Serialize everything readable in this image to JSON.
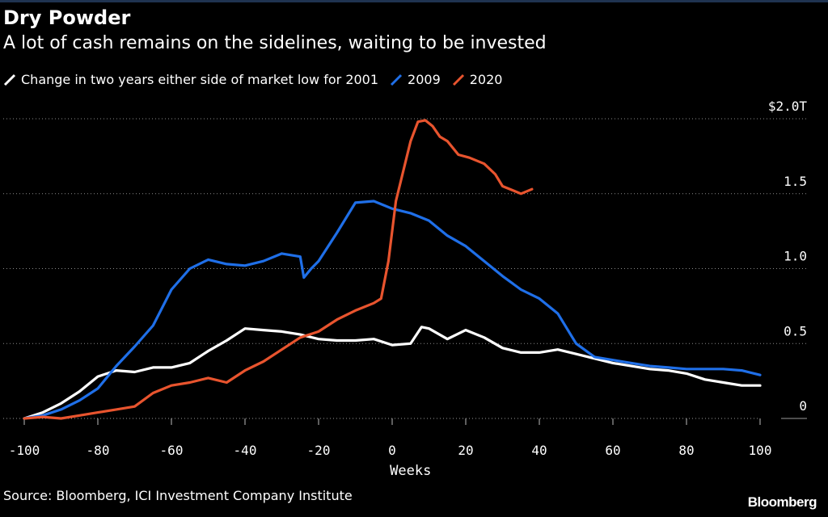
{
  "title": "Dry Powder",
  "subtitle": "A lot of cash remains on the sidelines, waiting to be invested",
  "source": "Source: Bloomberg, ICI Investment Company Institute",
  "brand": "Bloomberg",
  "chart_data": {
    "type": "line",
    "xlabel": "Weeks",
    "ylabel": "",
    "xlim": [
      -100,
      100
    ],
    "ylim": [
      0,
      2.0
    ],
    "x_ticks": [
      -100,
      -80,
      -60,
      -40,
      -20,
      0,
      20,
      40,
      60,
      80,
      100
    ],
    "y_ticks": [
      {
        "value": 0,
        "label": "0"
      },
      {
        "value": 0.5,
        "label": "0.5"
      },
      {
        "value": 1.0,
        "label": "1.0"
      },
      {
        "value": 1.5,
        "label": "1.5"
      },
      {
        "value": 2.0,
        "label": "$2.0T"
      }
    ],
    "grid": "horizontal dotted",
    "legend_position": "top-left",
    "series": [
      {
        "name": "Change in two years either side of market low for 2001",
        "color": "#ffffff",
        "x": [
          -100,
          -95,
          -90,
          -85,
          -80,
          -75,
          -70,
          -65,
          -60,
          -55,
          -50,
          -45,
          -40,
          -35,
          -30,
          -25,
          -20,
          -15,
          -10,
          -5,
          0,
          5,
          8,
          10,
          15,
          20,
          25,
          30,
          35,
          40,
          45,
          50,
          55,
          60,
          65,
          70,
          75,
          80,
          85,
          90,
          95,
          100
        ],
        "y": [
          0.0,
          0.04,
          0.1,
          0.18,
          0.28,
          0.32,
          0.31,
          0.34,
          0.34,
          0.37,
          0.45,
          0.52,
          0.6,
          0.59,
          0.58,
          0.56,
          0.53,
          0.52,
          0.52,
          0.53,
          0.49,
          0.5,
          0.61,
          0.6,
          0.53,
          0.59,
          0.54,
          0.47,
          0.44,
          0.44,
          0.46,
          0.43,
          0.4,
          0.37,
          0.35,
          0.33,
          0.32,
          0.3,
          0.26,
          0.24,
          0.22,
          0.22
        ]
      },
      {
        "name": "2009",
        "color": "#1f6fe8",
        "x": [
          -100,
          -95,
          -90,
          -85,
          -80,
          -75,
          -70,
          -65,
          -60,
          -55,
          -50,
          -45,
          -40,
          -35,
          -30,
          -25,
          -24,
          -22,
          -20,
          -15,
          -10,
          -5,
          0,
          5,
          10,
          15,
          20,
          25,
          30,
          35,
          40,
          45,
          50,
          55,
          60,
          65,
          70,
          75,
          80,
          85,
          90,
          95,
          100
        ],
        "y": [
          0.0,
          0.02,
          0.06,
          0.12,
          0.2,
          0.35,
          0.48,
          0.62,
          0.86,
          1.0,
          1.06,
          1.03,
          1.02,
          1.05,
          1.1,
          1.08,
          0.94,
          1.0,
          1.05,
          1.24,
          1.44,
          1.45,
          1.4,
          1.37,
          1.32,
          1.22,
          1.15,
          1.05,
          0.95,
          0.86,
          0.8,
          0.7,
          0.5,
          0.41,
          0.39,
          0.37,
          0.35,
          0.34,
          0.33,
          0.33,
          0.33,
          0.32,
          0.29
        ]
      },
      {
        "name": "2020",
        "color": "#e8542e",
        "x": [
          -100,
          -95,
          -90,
          -85,
          -80,
          -75,
          -70,
          -65,
          -60,
          -55,
          -50,
          -45,
          -40,
          -35,
          -30,
          -25,
          -20,
          -15,
          -10,
          -5,
          -3,
          -1,
          1,
          3,
          5,
          7,
          9,
          11,
          13,
          15,
          18,
          21,
          25,
          28,
          30,
          33,
          35,
          38
        ],
        "y": [
          0.0,
          0.01,
          0.0,
          0.02,
          0.04,
          0.06,
          0.08,
          0.17,
          0.22,
          0.24,
          0.27,
          0.24,
          0.32,
          0.38,
          0.46,
          0.54,
          0.58,
          0.66,
          0.72,
          0.77,
          0.8,
          1.05,
          1.45,
          1.65,
          1.85,
          1.98,
          1.99,
          1.95,
          1.88,
          1.85,
          1.76,
          1.74,
          1.7,
          1.63,
          1.55,
          1.52,
          1.5,
          1.53
        ]
      }
    ]
  }
}
